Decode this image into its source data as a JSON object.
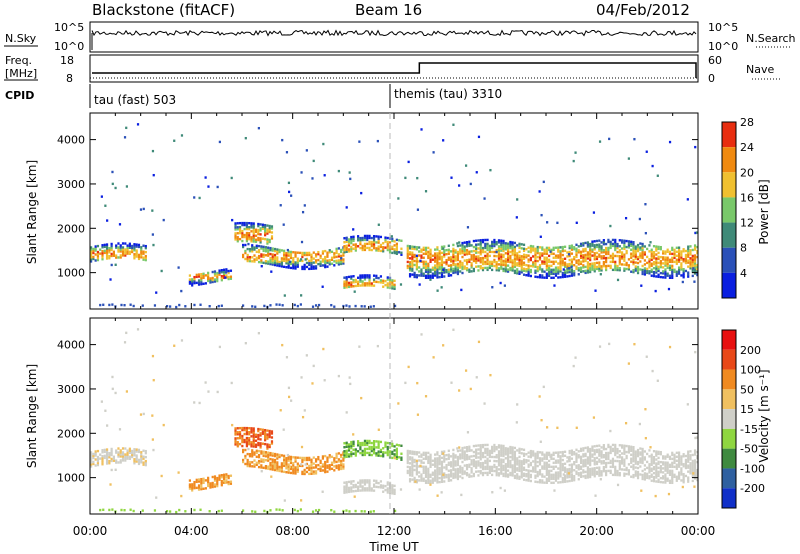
{
  "header": {
    "station": "Blackstone (fitACF)",
    "beam": "Beam 16",
    "date": "04/Feb/2012"
  },
  "noise_panel": {
    "left_label": "N.Sky",
    "right_label": "N.Search",
    "left_ticks": [
      "10^5",
      "10^0"
    ],
    "right_ticks": [
      "10^5",
      "10^0"
    ]
  },
  "freq_panel": {
    "left_label_1": "Freq.",
    "left_label_2": "[MHz]",
    "right_label": "Nave",
    "left_ticks": [
      "18",
      "8"
    ],
    "right_ticks": [
      "60",
      "0"
    ],
    "freq_step_time_hours": 13.0
  },
  "cpid": {
    "label": "CPID",
    "modes": [
      {
        "name": "tau (fast) 503",
        "start_hours": 0.0
      },
      {
        "name": "themis (tau) 3310",
        "start_hours": 12.0
      }
    ]
  },
  "chart_data": [
    {
      "type": "heatmap",
      "name": "power",
      "ylabel": "Slant Range [km]",
      "xlabel": "Time UT",
      "x_ticks": [
        "00:00",
        "04:00",
        "08:00",
        "12:00",
        "16:00",
        "20:00",
        "00:00"
      ],
      "y_ticks": [
        1000,
        2000,
        3000,
        4000
      ],
      "xlim_hours": [
        0,
        24
      ],
      "ylim_km": [
        180,
        4600
      ],
      "colorbar_label": "Power [dB]",
      "colorbar_ticks": [
        4,
        8,
        12,
        16,
        20,
        24,
        28
      ],
      "colorbar_range": [
        0,
        30
      ],
      "colors": [
        "#0a1fe0",
        "#2a50b8",
        "#3f8a78",
        "#79c86a",
        "#f0c030",
        "#f08a10",
        "#e82e10"
      ]
    },
    {
      "type": "heatmap",
      "name": "velocity",
      "ylabel": "Slant Range [km]",
      "xlabel": "Time UT",
      "x_ticks": [
        "00:00",
        "04:00",
        "08:00",
        "12:00",
        "16:00",
        "20:00",
        "00:00"
      ],
      "y_ticks": [
        1000,
        2000,
        3000,
        4000
      ],
      "xlim_hours": [
        0,
        24
      ],
      "ylim_km": [
        180,
        4600
      ],
      "colorbar_label": "Velocity [m s⁻¹]",
      "colorbar_ticks": [
        "200",
        "100",
        "50",
        "15",
        "-15",
        "-50",
        "-100",
        "-200"
      ],
      "colors": [
        "#1030c8",
        "#2f60a0",
        "#3f8a40",
        "#8fd640",
        "#cfcfc8",
        "#f0c060",
        "#f08a20",
        "#e84818",
        "#e81010"
      ]
    }
  ],
  "echo_bands": [
    {
      "t0": 0.0,
      "t1": 2.2,
      "r0": 1280,
      "r1": 1620,
      "kind": "mixed"
    },
    {
      "t0": 3.9,
      "t1": 5.6,
      "r0": 820,
      "r1": 1050,
      "kind": "away"
    },
    {
      "t0": 5.7,
      "t1": 7.2,
      "r0": 1650,
      "r1": 2100,
      "kind": "away_strong"
    },
    {
      "t0": 6.0,
      "t1": 10.0,
      "r0": 1200,
      "r1": 1600,
      "kind": "away"
    },
    {
      "t0": 10.0,
      "t1": 12.0,
      "r0": 650,
      "r1": 900,
      "kind": "ground"
    },
    {
      "t0": 10.0,
      "t1": 12.3,
      "r0": 1450,
      "r1": 1800,
      "kind": "toward"
    },
    {
      "t0": 12.5,
      "t1": 24.0,
      "r0": 1000,
      "r1": 1700,
      "kind": "ground"
    }
  ]
}
